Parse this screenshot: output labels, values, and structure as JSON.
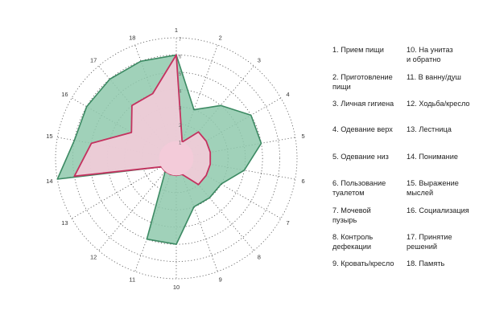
{
  "chart_data": {
    "type": "radar",
    "title": "",
    "axes": [
      "1",
      "2",
      "3",
      "4",
      "5",
      "6",
      "7",
      "8",
      "9",
      "10",
      "11",
      "12",
      "13",
      "14",
      "15",
      "16",
      "17",
      "18"
    ],
    "rlim": [
      0,
      7
    ],
    "ring_labels": [
      "1",
      "2",
      "3",
      "4",
      "5",
      "6",
      "7"
    ],
    "grid": true,
    "series": [
      {
        "values": [
          6,
          3,
          4,
          5,
          5,
          4,
          3,
          3,
          3,
          5,
          5,
          1,
          1,
          7,
          6,
          6,
          6,
          6
        ],
        "color": "#8fc9ad",
        "stroke": "#3c8a63"
      },
      {
        "values": [
          6,
          1,
          2,
          2,
          2,
          2,
          2,
          2,
          1,
          1,
          1,
          1,
          1,
          6,
          5,
          3,
          4,
          4
        ],
        "color": "#f3cbd9",
        "stroke": "#c4325f"
      }
    ],
    "legend": [
      "1. Прием пищи",
      "2. Приготовление\nпищи",
      "3. Личная гигиена",
      "4. Одевание верх",
      "5. Одевание низ",
      "6. Пользование\nтуалетом",
      "7. Мочевой\nпузырь",
      "8. Контроль\nдефекации",
      "9. Кровать/кресло",
      "10. На унитаз\nи обратно",
      "11. В ванну/душ",
      "12. Ходьба/кресло",
      "13. Лестница",
      "14. Понимание",
      "15. Выражение\nмыслей",
      "16. Социализация",
      "17. Принятие\nрешений",
      "18. Память"
    ]
  }
}
